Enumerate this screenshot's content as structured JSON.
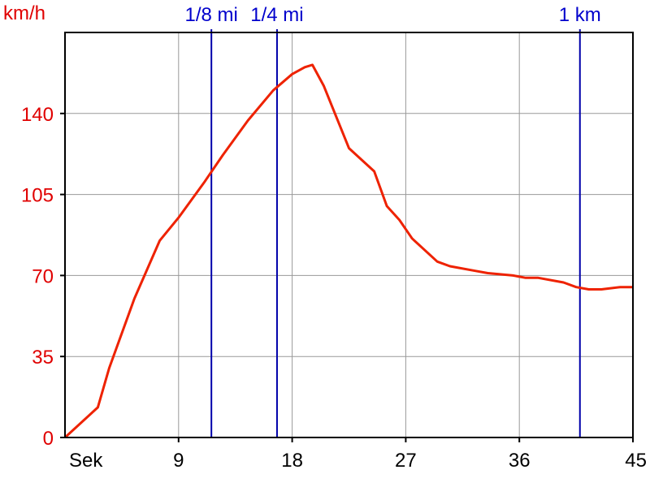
{
  "chart_data": {
    "type": "line",
    "ylabel": "km/h",
    "xlabel": "Sek",
    "xlim": [
      0,
      45
    ],
    "ylim": [
      0,
      175
    ],
    "x_ticks": [
      9,
      18,
      27,
      36,
      45
    ],
    "y_ticks": [
      0,
      35,
      70,
      105,
      140
    ],
    "grid": true,
    "colors": {
      "line": "#ee2200",
      "grid": "#999999",
      "markers": "#0000aa",
      "y_text": "#e00000"
    },
    "markers": [
      {
        "label": "1/8 mi",
        "x": 11.6
      },
      {
        "label": "1/4 mi",
        "x": 16.8
      },
      {
        "label": "1 km",
        "x": 40.8
      }
    ],
    "series": [
      {
        "x": [
          0,
          2.6,
          3.5,
          5.5,
          7.5,
          9,
          11,
          12.5,
          14.5,
          16.5,
          18,
          19,
          19.6,
          20.5,
          22.5,
          24.5,
          25.5,
          26.5,
          27.5,
          29.5,
          30.5,
          32.5,
          33.5,
          35.5,
          36.5,
          37.5,
          39.5,
          40.5,
          41.5,
          42.5,
          44,
          45
        ],
        "y": [
          0,
          13,
          30,
          60,
          85,
          95,
          110,
          122,
          137,
          150,
          157,
          160,
          161,
          152,
          125,
          115,
          100,
          94,
          86,
          76,
          74,
          72,
          71,
          70,
          69,
          69,
          67,
          65,
          64,
          64,
          65,
          65
        ]
      }
    ]
  }
}
